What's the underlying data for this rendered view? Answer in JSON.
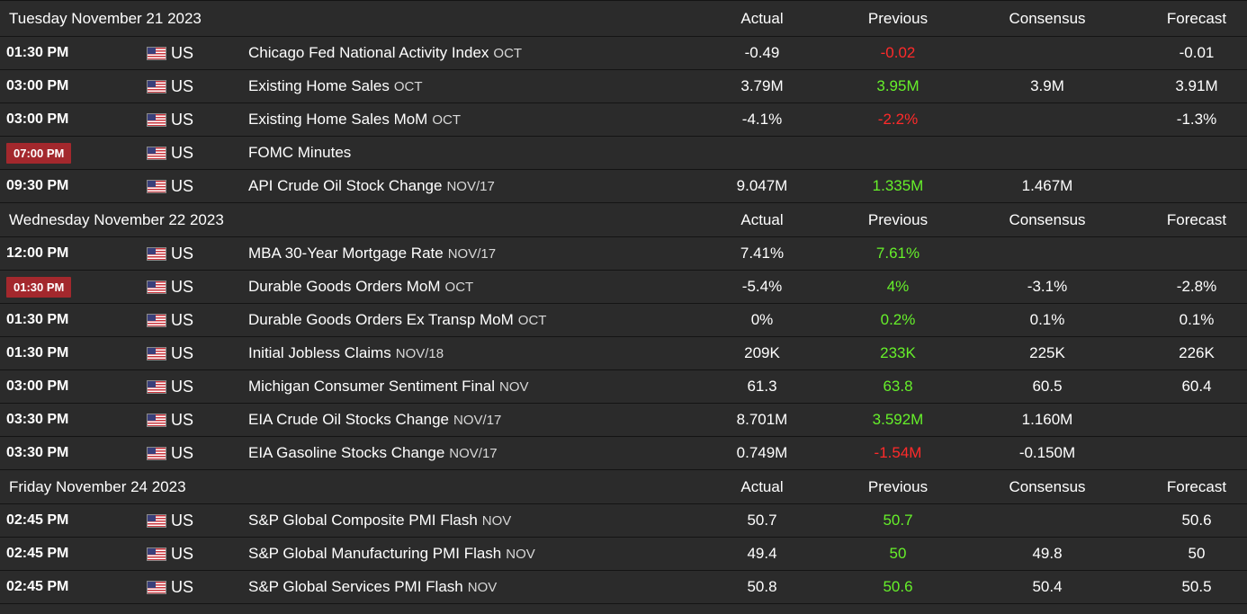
{
  "columns": {
    "actual": "Actual",
    "previous": "Previous",
    "consensus": "Consensus",
    "forecast": "Forecast"
  },
  "colors": {
    "background": "#2b2b2b",
    "negative": "#ff2a2a",
    "positive": "#66f02a",
    "highlight_time": "#a3282d"
  },
  "days": [
    {
      "title": "Tuesday November 21 2023",
      "events": [
        {
          "time": "01:30 PM",
          "highlight": false,
          "country": "US",
          "flag": "us-flag-icon",
          "name": "Chicago Fed National Activity Index",
          "period": "OCT",
          "actual": "-0.49",
          "previous": "-0.02",
          "previous_color": "red",
          "consensus": "",
          "forecast": "-0.01"
        },
        {
          "time": "03:00 PM",
          "highlight": false,
          "country": "US",
          "flag": "us-flag-icon",
          "name": "Existing Home Sales",
          "period": "OCT",
          "actual": "3.79M",
          "previous": "3.95M",
          "previous_color": "green",
          "consensus": "3.9M",
          "forecast": "3.91M"
        },
        {
          "time": "03:00 PM",
          "highlight": false,
          "country": "US",
          "flag": "us-flag-icon",
          "name": "Existing Home Sales MoM",
          "period": "OCT",
          "actual": "-4.1%",
          "previous": "-2.2%",
          "previous_color": "red",
          "consensus": "",
          "forecast": "-1.3%"
        },
        {
          "time": "07:00 PM",
          "highlight": true,
          "country": "US",
          "flag": "us-flag-icon",
          "name": "FOMC Minutes",
          "period": "",
          "actual": "",
          "previous": "",
          "previous_color": "",
          "consensus": "",
          "forecast": ""
        },
        {
          "time": "09:30 PM",
          "highlight": false,
          "country": "US",
          "flag": "us-flag-icon",
          "name": "API Crude Oil Stock Change",
          "period": "NOV/17",
          "actual": "9.047M",
          "previous": "1.335M",
          "previous_color": "green",
          "consensus": "1.467M",
          "forecast": ""
        }
      ]
    },
    {
      "title": "Wednesday November 22 2023",
      "events": [
        {
          "time": "12:00 PM",
          "highlight": false,
          "country": "US",
          "flag": "us-flag-icon",
          "name": "MBA 30-Year Mortgage Rate",
          "period": "NOV/17",
          "actual": "7.41%",
          "previous": "7.61%",
          "previous_color": "green",
          "consensus": "",
          "forecast": ""
        },
        {
          "time": "01:30 PM",
          "highlight": true,
          "country": "US",
          "flag": "us-flag-icon",
          "name": "Durable Goods Orders MoM",
          "period": "OCT",
          "actual": "-5.4%",
          "previous": "4%",
          "previous_color": "green",
          "consensus": "-3.1%",
          "forecast": "-2.8%"
        },
        {
          "time": "01:30 PM",
          "highlight": false,
          "country": "US",
          "flag": "us-flag-icon",
          "name": "Durable Goods Orders Ex Transp MoM",
          "period": "OCT",
          "actual": "0%",
          "previous": "0.2%",
          "previous_color": "green",
          "consensus": "0.1%",
          "forecast": "0.1%"
        },
        {
          "time": "01:30 PM",
          "highlight": false,
          "country": "US",
          "flag": "us-flag-icon",
          "name": "Initial Jobless Claims",
          "period": "NOV/18",
          "actual": "209K",
          "previous": "233K",
          "previous_color": "green",
          "consensus": "225K",
          "forecast": "226K"
        },
        {
          "time": "03:00 PM",
          "highlight": false,
          "country": "US",
          "flag": "us-flag-icon",
          "name": "Michigan Consumer Sentiment Final",
          "period": "NOV",
          "actual": "61.3",
          "previous": "63.8",
          "previous_color": "green",
          "consensus": "60.5",
          "forecast": "60.4"
        },
        {
          "time": "03:30 PM",
          "highlight": false,
          "country": "US",
          "flag": "us-flag-icon",
          "name": "EIA Crude Oil Stocks Change",
          "period": "NOV/17",
          "actual": "8.701M",
          "previous": "3.592M",
          "previous_color": "green",
          "consensus": "1.160M",
          "forecast": ""
        },
        {
          "time": "03:30 PM",
          "highlight": false,
          "country": "US",
          "flag": "us-flag-icon",
          "name": "EIA Gasoline Stocks Change",
          "period": "NOV/17",
          "actual": "0.749M",
          "previous": "-1.54M",
          "previous_color": "red",
          "consensus": "-0.150M",
          "forecast": ""
        }
      ]
    },
    {
      "title": "Friday November 24 2023",
      "events": [
        {
          "time": "02:45 PM",
          "highlight": false,
          "country": "US",
          "flag": "us-flag-icon",
          "name": "S&P Global Composite PMI Flash",
          "period": "NOV",
          "actual": "50.7",
          "previous": "50.7",
          "previous_color": "green",
          "consensus": "",
          "forecast": "50.6"
        },
        {
          "time": "02:45 PM",
          "highlight": false,
          "country": "US",
          "flag": "us-flag-icon",
          "name": "S&P Global Manufacturing PMI Flash",
          "period": "NOV",
          "actual": "49.4",
          "previous": "50",
          "previous_color": "green",
          "consensus": "49.8",
          "forecast": "50"
        },
        {
          "time": "02:45 PM",
          "highlight": false,
          "country": "US",
          "flag": "us-flag-icon",
          "name": "S&P Global Services PMI Flash",
          "period": "NOV",
          "actual": "50.8",
          "previous": "50.6",
          "previous_color": "green",
          "consensus": "50.4",
          "forecast": "50.5"
        }
      ]
    }
  ]
}
